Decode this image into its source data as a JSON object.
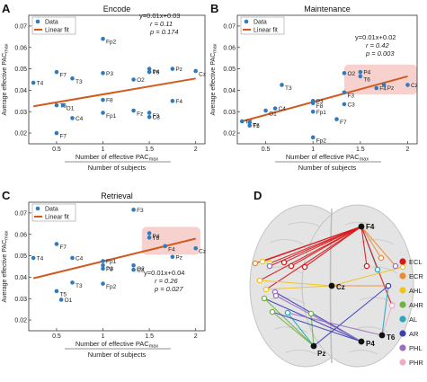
{
  "chart_data": [
    {
      "type": "scatter",
      "panel_letter": "A",
      "title": "Encode",
      "ylabel": "Average effective PAC",
      "ylabel_sub": "max",
      "xlabel_line1": "Number of effective PAC",
      "xlabel_line1_sub": "max",
      "xlabel_line2": "Number of subjects",
      "xlim": [
        0.2,
        2.1
      ],
      "ylim": [
        0.015,
        0.075
      ],
      "xticks": [
        0.5,
        1,
        1.5,
        2
      ],
      "yticks": [
        0.02,
        0.03,
        0.04,
        0.05,
        0.06,
        0.07
      ],
      "legend_data": "Data",
      "legend_fit": "Linear fit",
      "eq_line1": "y=0.01x+0.03",
      "eq_line2": "r = 0.11",
      "eq_line3": "p = 0.174",
      "fit": [
        [
          0.25,
          0.0325
        ],
        [
          2.0,
          0.0455
        ]
      ],
      "points": [
        {
          "label": "T4",
          "x": 0.25,
          "y": 0.0435
        },
        {
          "label": "F7",
          "x": 0.5,
          "y": 0.0485
        },
        {
          "label": "T5",
          "x": 0.5,
          "y": 0.033
        },
        {
          "label": "O1",
          "x": 0.57,
          "y": 0.033
        },
        {
          "label": "C4",
          "x": 0.67,
          "y": 0.027
        },
        {
          "label": "T3",
          "x": 0.67,
          "y": 0.0455
        },
        {
          "label": "F8",
          "x": 1.0,
          "y": 0.0355
        },
        {
          "label": "Fp2",
          "x": 1.0,
          "y": 0.064
        },
        {
          "label": "P3",
          "x": 1.0,
          "y": 0.048
        },
        {
          "label": "Fp1",
          "x": 1.0,
          "y": 0.0295
        },
        {
          "label": "O2",
          "x": 1.33,
          "y": 0.045
        },
        {
          "label": "Fz",
          "x": 1.33,
          "y": 0.0305
        },
        {
          "label": "T6",
          "x": 1.5,
          "y": 0.0485
        },
        {
          "label": "P4",
          "x": 1.5,
          "y": 0.05
        },
        {
          "label": "Pz",
          "x": 1.75,
          "y": 0.05
        },
        {
          "label": "Cz",
          "x": 2.0,
          "y": 0.049
        },
        {
          "label": "F4",
          "x": 1.75,
          "y": 0.035
        },
        {
          "label": "F3",
          "x": 1.5,
          "y": 0.0295
        },
        {
          "label": "C3",
          "x": 1.5,
          "y": 0.0275
        },
        {
          "label": "F7",
          "x": 0.5,
          "y": 0.02
        }
      ]
    },
    {
      "type": "scatter",
      "panel_letter": "B",
      "title": "Maintenance",
      "ylabel": "Average effective PAC",
      "ylabel_sub": "max",
      "xlabel_line1": "Number of effective PAC",
      "xlabel_line1_sub": "max",
      "xlabel_line2": "Number of subjects",
      "xlim": [
        0.2,
        2.1
      ],
      "ylim": [
        0.015,
        0.075
      ],
      "xticks": [
        0.5,
        1,
        1.5,
        2
      ],
      "yticks": [
        0.02,
        0.03,
        0.04,
        0.05,
        0.06,
        0.07
      ],
      "legend_data": "Data",
      "legend_fit": "Linear fit",
      "eq_line1": "y=0.01x+0.02",
      "eq_line2": "r = 0.42",
      "eq_line3": "p = 0.003",
      "fit": [
        [
          0.25,
          0.0255
        ],
        [
          2.0,
          0.0465
        ]
      ],
      "points": [
        {
          "label": "T4",
          "x": 0.25,
          "y": 0.0255
        },
        {
          "label": "Fz",
          "x": 0.33,
          "y": 0.025
        },
        {
          "label": "T5",
          "x": 0.33,
          "y": 0.0235
        },
        {
          "label": "O1",
          "x": 0.5,
          "y": 0.0305
        },
        {
          "label": "C4",
          "x": 0.6,
          "y": 0.0315
        },
        {
          "label": "T3",
          "x": 0.67,
          "y": 0.0425
        },
        {
          "label": "P3",
          "x": 1.0,
          "y": 0.035
        },
        {
          "label": "F8",
          "x": 1.0,
          "y": 0.034
        },
        {
          "label": "Fp1",
          "x": 1.0,
          "y": 0.03
        },
        {
          "label": "Fp2",
          "x": 1.0,
          "y": 0.018
        },
        {
          "label": "O2",
          "x": 1.33,
          "y": 0.048
        },
        {
          "label": "F3",
          "x": 1.33,
          "y": 0.039
        },
        {
          "label": "C3",
          "x": 1.33,
          "y": 0.0335
        },
        {
          "label": "F7",
          "x": 1.25,
          "y": 0.0265
        },
        {
          "label": "P4",
          "x": 1.5,
          "y": 0.0485
        },
        {
          "label": "T6",
          "x": 1.5,
          "y": 0.0465
        },
        {
          "label": "F4",
          "x": 1.67,
          "y": 0.041
        },
        {
          "label": "Pz",
          "x": 1.75,
          "y": 0.0425
        },
        {
          "label": "Cz",
          "x": 2.0,
          "y": 0.0425
        }
      ]
    },
    {
      "type": "scatter",
      "panel_letter": "C",
      "title": "Retrieval",
      "ylabel": "Average effective PAC",
      "ylabel_sub": "max",
      "xlabel_line1": "Number of effective PAC",
      "xlabel_line1_sub": "max",
      "xlabel_line2": "Number of subjects",
      "xlim": [
        0.2,
        2.1
      ],
      "ylim": [
        0.015,
        0.075
      ],
      "xticks": [
        0.5,
        1,
        1.5,
        2
      ],
      "yticks": [
        0.02,
        0.03,
        0.04,
        0.05,
        0.06,
        0.07
      ],
      "legend_data": "Data",
      "legend_fit": "Linear fit",
      "eq_line1": "y=0.01x+0.04",
      "eq_line2": "r = 0.26",
      "eq_line3": "p = 0.027",
      "fit": [
        [
          0.25,
          0.0395
        ],
        [
          2.0,
          0.058
        ]
      ],
      "points": [
        {
          "label": "T4",
          "x": 0.25,
          "y": 0.049
        },
        {
          "label": "F7",
          "x": 0.5,
          "y": 0.0555
        },
        {
          "label": "C4",
          "x": 0.67,
          "y": 0.049
        },
        {
          "label": "T5",
          "x": 0.5,
          "y": 0.0335
        },
        {
          "label": "O1",
          "x": 0.55,
          "y": 0.0295
        },
        {
          "label": "T3",
          "x": 0.67,
          "y": 0.0375
        },
        {
          "label": "Fp1",
          "x": 1.0,
          "y": 0.0475
        },
        {
          "label": "P3",
          "x": 1.0,
          "y": 0.0455
        },
        {
          "label": "F8",
          "x": 1.0,
          "y": 0.044
        },
        {
          "label": "Fp2",
          "x": 1.0,
          "y": 0.037
        },
        {
          "label": "F3",
          "x": 1.33,
          "y": 0.0715
        },
        {
          "label": "O2",
          "x": 1.33,
          "y": 0.0455
        },
        {
          "label": "C3",
          "x": 1.33,
          "y": 0.0435
        },
        {
          "label": "P4",
          "x": 1.5,
          "y": 0.0605
        },
        {
          "label": "T6",
          "x": 1.5,
          "y": 0.0585
        },
        {
          "label": "F4",
          "x": 1.67,
          "y": 0.0545
        },
        {
          "label": "Pz",
          "x": 1.75,
          "y": 0.0495
        },
        {
          "label": "Cz",
          "x": 2.0,
          "y": 0.0535
        }
      ]
    },
    {
      "type": "network",
      "panel_letter": "D",
      "nodes": [
        {
          "label": "F4"
        },
        {
          "label": "Cz"
        },
        {
          "label": "Pz"
        },
        {
          "label": "P4"
        },
        {
          "label": "T6"
        }
      ],
      "legend": [
        {
          "label": "ECL",
          "color": "#d7191c"
        },
        {
          "label": "ECR",
          "color": "#ef8a30"
        },
        {
          "label": "AHL",
          "color": "#f0c419"
        },
        {
          "label": "AHR",
          "color": "#6db33f"
        },
        {
          "label": "AL",
          "color": "#27a9c0"
        },
        {
          "label": "AR",
          "color": "#3a3fb8"
        },
        {
          "label": "PHL",
          "color": "#9a6fc0"
        },
        {
          "label": "PHR",
          "color": "#f2a9c8"
        }
      ]
    }
  ],
  "colors": {
    "point": "#2e7bbf",
    "fit": "#d35a1f",
    "highlight": "#f6c9c4"
  }
}
